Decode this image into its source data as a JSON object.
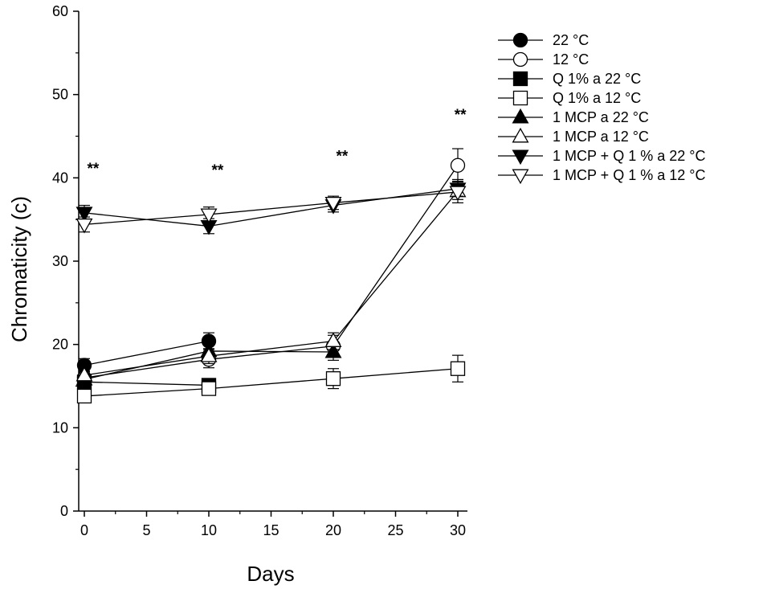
{
  "chart_data": {
    "type": "line",
    "xlabel": "Days",
    "ylabel": "Chromaticity (c)",
    "xlim": [
      -1,
      31
    ],
    "ylim": [
      0,
      60
    ],
    "xticks": [
      0,
      5,
      10,
      15,
      20,
      25,
      30
    ],
    "yticks": [
      0,
      10,
      20,
      30,
      40,
      50,
      60
    ],
    "x": [
      0,
      10,
      20,
      30
    ],
    "series": [
      {
        "name": "22 °C",
        "marker": "circle",
        "fill": "black",
        "x": [
          0,
          10
        ],
        "values": [
          17.5,
          20.4
        ],
        "errors": [
          0.8,
          1.0
        ]
      },
      {
        "name": "12 °C",
        "marker": "circle",
        "fill": "white",
        "x": [
          0,
          10,
          20,
          30
        ],
        "values": [
          16.0,
          18.2,
          19.8,
          41.5
        ],
        "errors": [
          0.8,
          1.0,
          1.3,
          2.0
        ]
      },
      {
        "name": "Q 1%  a 22 °C",
        "marker": "square",
        "fill": "black",
        "x": [
          0,
          10
        ],
        "values": [
          15.5,
          15.1
        ],
        "errors": [
          0.6,
          0.6
        ]
      },
      {
        "name": "Q 1% a 12 °C",
        "marker": "square",
        "fill": "white",
        "x": [
          0,
          10,
          20,
          30
        ],
        "values": [
          13.8,
          14.7,
          15.9,
          17.1
        ],
        "errors": [
          0.6,
          0.6,
          1.2,
          1.6
        ]
      },
      {
        "name": "1 MCP a 22 °C",
        "marker": "triangle-up",
        "fill": "black",
        "x": [
          0,
          10,
          20
        ],
        "values": [
          15.8,
          19.2,
          19.1
        ],
        "errors": [
          0.7,
          0.9,
          1.0
        ]
      },
      {
        "name": "1 MCP a 12 °C",
        "marker": "triangle-up",
        "fill": "white",
        "x": [
          0,
          10,
          20,
          30
        ],
        "values": [
          16.3,
          18.6,
          20.4,
          38.4
        ],
        "errors": [
          0.7,
          0.9,
          1.0,
          1.4
        ]
      },
      {
        "name": "1 MCP + Q 1 % a 22 °C",
        "marker": "triangle-down",
        "fill": "black",
        "x": [
          0,
          10,
          20,
          30
        ],
        "values": [
          35.8,
          34.2,
          36.7,
          38.7
        ],
        "errors": [
          0.9,
          0.9,
          0.8,
          0.9
        ]
      },
      {
        "name": "1 MCP + Q 1 % a 12 °C",
        "marker": "triangle-down",
        "fill": "white",
        "x": [
          0,
          10,
          20,
          30
        ],
        "values": [
          34.4,
          35.6,
          37.0,
          38.3
        ],
        "errors": [
          0.9,
          0.9,
          0.8,
          0.9
        ]
      }
    ],
    "annotations": [
      {
        "text": "**",
        "x": 0.7,
        "y": 40.5
      },
      {
        "text": "**",
        "x": 10.7,
        "y": 40.3
      },
      {
        "text": "**",
        "x": 20.7,
        "y": 42.0
      },
      {
        "text": "**",
        "x": 30.2,
        "y": 47.0
      }
    ],
    "legend": "top-right"
  }
}
